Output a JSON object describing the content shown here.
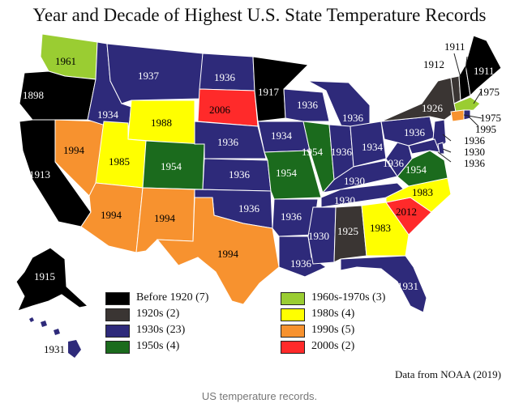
{
  "title": "Year and Decade of Highest U.S. State Temperature Records",
  "source": "Data from NOAA (2019)",
  "caption": "US temperature records.",
  "colors": {
    "before1920": "#000000",
    "1920s": "#3a3533",
    "1930s": "#2e2a7a",
    "1950s": "#1b6b1d",
    "1960s1970s": "#9acd32",
    "1980s": "#ffff00",
    "1990s": "#f7922f",
    "2000s": "#ff2a2a",
    "water": "#ffffff",
    "border": "#ffffff"
  },
  "legend": [
    {
      "label": "Before 1920 (7)",
      "color": "#000000"
    },
    {
      "label": "1920s (2)",
      "color": "#3a3533"
    },
    {
      "label": "1930s (23)",
      "color": "#2e2a7a"
    },
    {
      "label": "1950s (4)",
      "color": "#1b6b1d"
    },
    {
      "label": "1960s-1970s (3)",
      "color": "#9acd32"
    },
    {
      "label": "1980s (4)",
      "color": "#ffff00"
    },
    {
      "label": "1990s (5)",
      "color": "#f7922f"
    },
    {
      "label": "2000s (2)",
      "color": "#ff2a2a"
    }
  ],
  "states": {
    "wa": "1961",
    "or": "1898",
    "ca": "1913",
    "nv": "1994",
    "id": "1934",
    "mt": "1937",
    "wy": "1988",
    "ut": "1985",
    "az": "1994",
    "co": "1954",
    "nm": "1994",
    "nd": "1936",
    "sd": "2006",
    "ne": "1936",
    "ks": "1936",
    "ok": "1936",
    "tx": "1994",
    "mn": "1917",
    "ia": "1934",
    "mo": "1954",
    "ar": "1936",
    "la": "1936",
    "wi": "1936",
    "il": "1954",
    "mi": "1936",
    "in": "1936",
    "oh": "1934",
    "ky": "1930",
    "tn": "1930",
    "ms": "1930",
    "al": "1925",
    "ga": "1983",
    "fl": "1931",
    "sc": "2012",
    "nc": "1983",
    "va": "1954",
    "wv": "1936",
    "pa": "1936",
    "ny": "1926",
    "me": "1911",
    "vt": "1912",
    "nh": "1911",
    "ma": "1975",
    "ct": "1975",
    "ri": "1995",
    "nj": "1936",
    "de": "1930",
    "md": "1936",
    "ak": "1915",
    "hi": "1931"
  }
}
